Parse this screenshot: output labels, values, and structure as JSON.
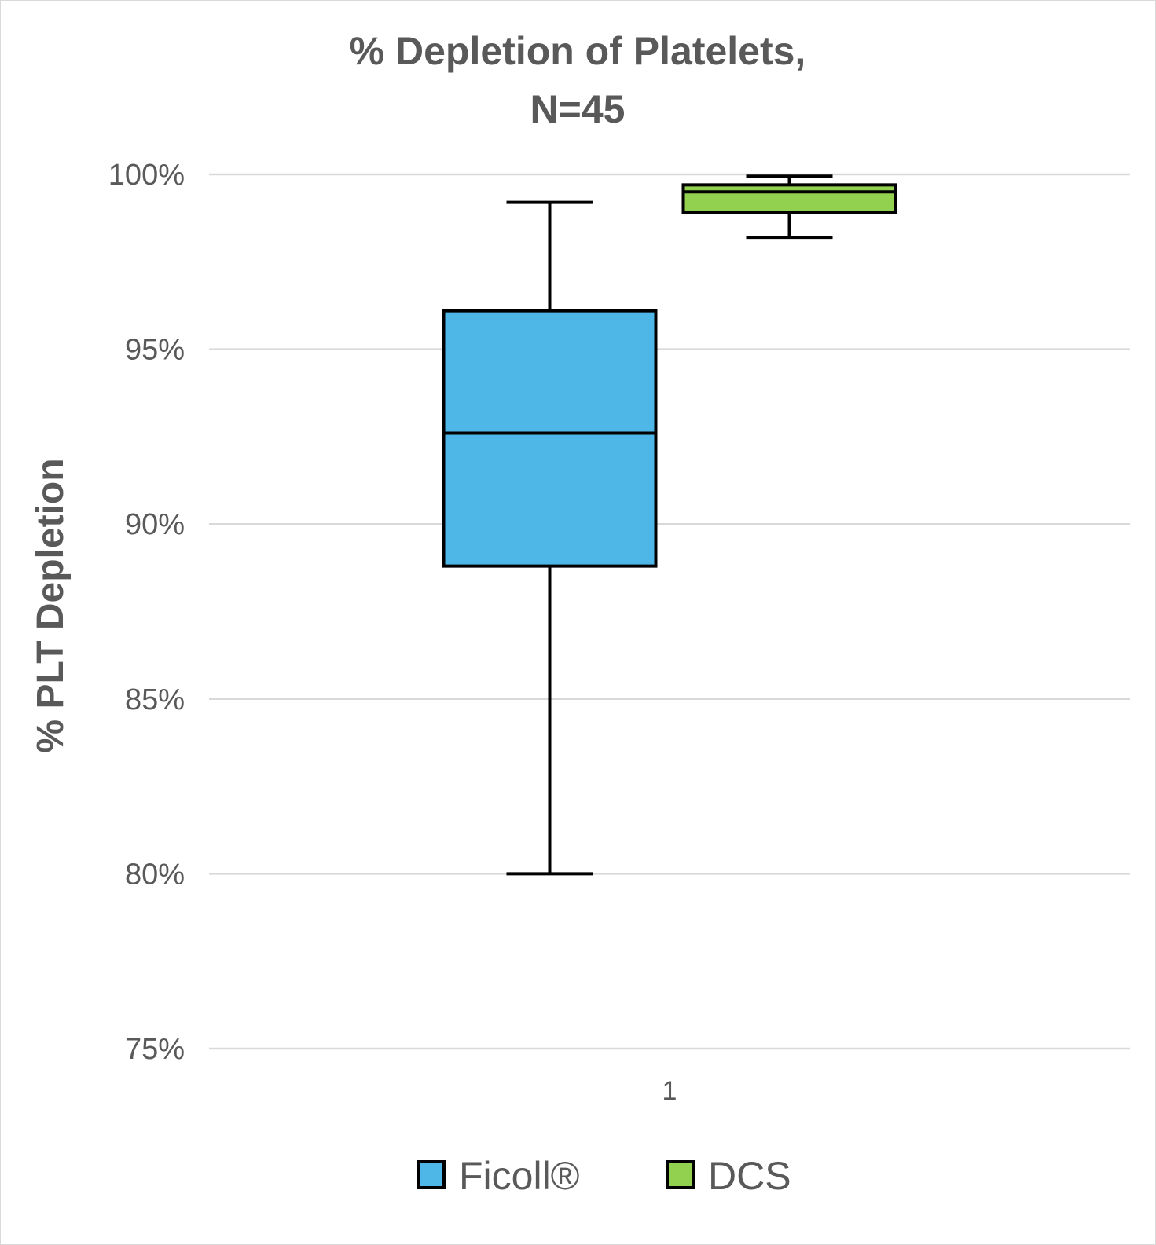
{
  "chart_data": {
    "type": "box",
    "title": [
      "% Depletion of Platelets,",
      "N=45"
    ],
    "ylabel": "% PLT Depletion",
    "xlabel": "",
    "categories": [
      "1"
    ],
    "ylim": [
      75,
      100
    ],
    "yticks": [
      75,
      80,
      85,
      90,
      95,
      100
    ],
    "ytick_labels": [
      "75%",
      "80%",
      "85%",
      "90%",
      "95%",
      "100%"
    ],
    "grid": true,
    "legend_position": "bottom",
    "series": [
      {
        "name": "Ficoll®",
        "color": "#4fb6e8",
        "min": 80.0,
        "q1": 88.8,
        "median": 92.6,
        "q3": 96.1,
        "max": 99.2
      },
      {
        "name": "DCS",
        "color": "#92d050",
        "min": 98.2,
        "q1": 98.9,
        "median": 99.5,
        "q3": 99.7,
        "max": 99.95
      }
    ]
  }
}
